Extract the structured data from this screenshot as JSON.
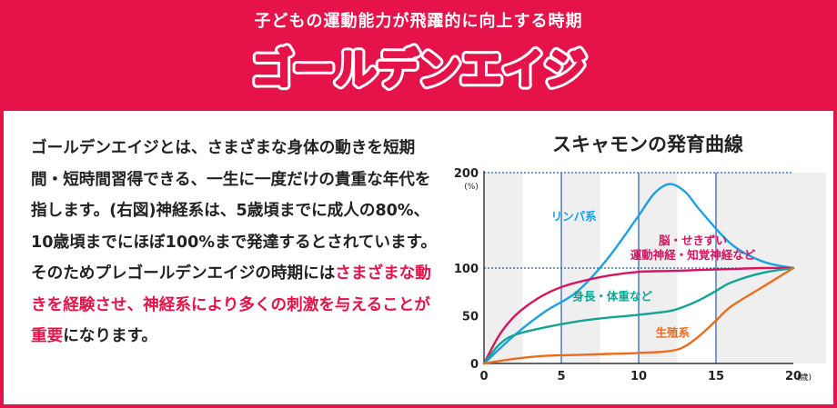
{
  "header": {
    "subtitle": "子どもの運動能力が飛躍的に向上する時期",
    "title": "ゴールデンエイジ"
  },
  "body": {
    "text_normal_1": "ゴールデンエイジとは、さまざまな身体の動きを短期間・短時間習得できる、一生に一度だけの貴重な年代を指します。(右図)神経系は、5歳頃までに成人の80%、10歳頃までにほぼ100%まで発達するとされています。そのためプレゴールデンエイジの時期には",
    "text_highlight": "さまざまな動きを経験させ、神経系により多くの刺激を与えることが重要",
    "text_normal_2": "になります。"
  },
  "colors": {
    "brand": "#e5134a",
    "title_fill": "#fde047",
    "title_outline": "#e5134a",
    "lymph": "#1ba1e2",
    "neural": "#d6145f",
    "general": "#14a394",
    "reproductive": "#ec6c1f",
    "grid_blue": "#2a5caa"
  },
  "chart_data": {
    "type": "line",
    "title": "スキャモンの発育曲線",
    "xlabel": "",
    "ylabel": "",
    "x_unit": "(歳)",
    "y_unit": "(%)",
    "xlim": [
      0,
      20
    ],
    "ylim": [
      0,
      200
    ],
    "x_ticks": [
      "0",
      "5",
      "10",
      "15",
      "20"
    ],
    "y_ticks": [
      "0",
      "50",
      "100",
      "200"
    ],
    "grid": true,
    "series": [
      {
        "name": "リンパ系",
        "x": [
          0,
          2,
          4,
          6,
          8,
          10,
          11,
          12,
          13,
          14,
          16,
          18,
          20
        ],
        "values": [
          0,
          30,
          55,
          75,
          110,
          155,
          178,
          188,
          180,
          160,
          125,
          107,
          100
        ]
      },
      {
        "name": "脳・せきずい\n運動神経・知覚神経など",
        "x": [
          0,
          1,
          2,
          3,
          4,
          5,
          6,
          8,
          10,
          12,
          14,
          16,
          18,
          20
        ],
        "values": [
          0,
          30,
          50,
          63,
          73,
          80,
          85,
          92,
          96,
          97,
          98,
          99,
          100,
          100
        ]
      },
      {
        "name": "身長・体重など",
        "x": [
          0,
          1,
          2,
          4,
          6,
          8,
          10,
          12,
          13,
          14,
          15,
          16,
          18,
          20
        ],
        "values": [
          0,
          20,
          30,
          38,
          44,
          48,
          51,
          55,
          60,
          67,
          76,
          85,
          95,
          100
        ]
      },
      {
        "name": "生殖系",
        "x": [
          0,
          2,
          4,
          6,
          8,
          10,
          12,
          13,
          14,
          15,
          16,
          18,
          20
        ],
        "values": [
          0,
          5,
          8,
          9,
          10,
          11,
          13,
          18,
          30,
          45,
          60,
          80,
          100
        ]
      }
    ]
  }
}
